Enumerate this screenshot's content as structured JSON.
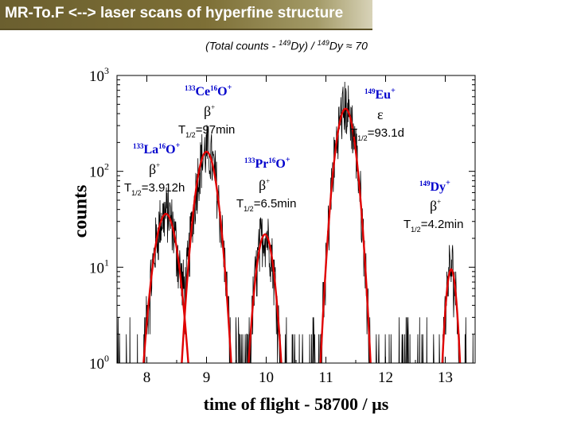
{
  "slide": {
    "title": "MR-To.F <--> laser scans of hyperfine structure",
    "subtitle_pre": "(Total counts - ",
    "subtitle_sup1": "149",
    "subtitle_mid": "Dy) / ",
    "subtitle_sup2": "149",
    "subtitle_post": "Dy ≈ 70"
  },
  "chart_data": {
    "type": "line",
    "xlabel": "time of flight - 58700 / µs",
    "ylabel": "counts",
    "xlim": [
      7.5,
      13.5
    ],
    "ylim": [
      1,
      1000
    ],
    "yscale": "log",
    "x_ticks": [
      8,
      9,
      10,
      11,
      12,
      13
    ],
    "x_tick_labels": [
      "8",
      "9",
      "10",
      "11",
      "12",
      "13"
    ],
    "y_ticks": [
      1,
      10,
      100,
      1000
    ],
    "y_tick_labels": [
      {
        "base": "10",
        "exp": "0"
      },
      {
        "base": "10",
        "exp": "1"
      },
      {
        "base": "10",
        "exp": "2"
      },
      {
        "base": "10",
        "exp": "3"
      }
    ],
    "series": [
      {
        "color": "#000000",
        "style": "noisy-data",
        "values": "measured spectrum"
      },
      {
        "color": "#e00000",
        "style": "fit"
      }
    ],
    "peaks": [
      {
        "center": 8.32,
        "height": 36,
        "sigma": 0.14
      },
      {
        "center": 9.0,
        "height": 160,
        "sigma": 0.13
      },
      {
        "center": 9.98,
        "height": 22,
        "sigma": 0.11
      },
      {
        "center": 11.33,
        "height": 450,
        "sigma": 0.12
      },
      {
        "center": 13.1,
        "height": 9.5,
        "sigma": 0.07
      }
    ],
    "annotations": [
      {
        "id": "ceo",
        "mass": "133",
        "el1": "Ce",
        "m2": "16",
        "el2": "O",
        "charge": "+",
        "decay": "β",
        "decay_sup": "+",
        "half_life_label": "T",
        "half_life_sub": "1/2",
        "half_life_value": "=97min"
      },
      {
        "id": "eu",
        "mass": "149",
        "el1": "Eu",
        "charge": "+",
        "decay": "ε",
        "half_life_label": "T",
        "half_life_sub": "1/2",
        "half_life_value": "=93.1d"
      },
      {
        "id": "lao",
        "mass": "133",
        "el1": "La",
        "m2": "16",
        "el2": "O",
        "charge": "+",
        "decay": "β",
        "decay_sup": "+",
        "half_life_label": "T",
        "half_life_sub": "1/2",
        "half_life_value": "=3.912h"
      },
      {
        "id": "pro",
        "mass": "133",
        "el1": "Pr",
        "m2": "16",
        "el2": "O",
        "charge": "+",
        "decay": "β",
        "decay_sup": "+",
        "half_life_label": "T",
        "half_life_sub": "1/2",
        "half_life_value": "=6.5min"
      },
      {
        "id": "dy",
        "mass": "149",
        "el1": "Dy",
        "charge": "+",
        "decay": "β",
        "decay_sup": "+",
        "half_life_label": "T",
        "half_life_sub": "1/2",
        "half_life_value": "=4.2min"
      }
    ],
    "colors": {
      "annotation_blue": "#0000cc",
      "fit": "#e00000",
      "data": "#000000"
    }
  }
}
